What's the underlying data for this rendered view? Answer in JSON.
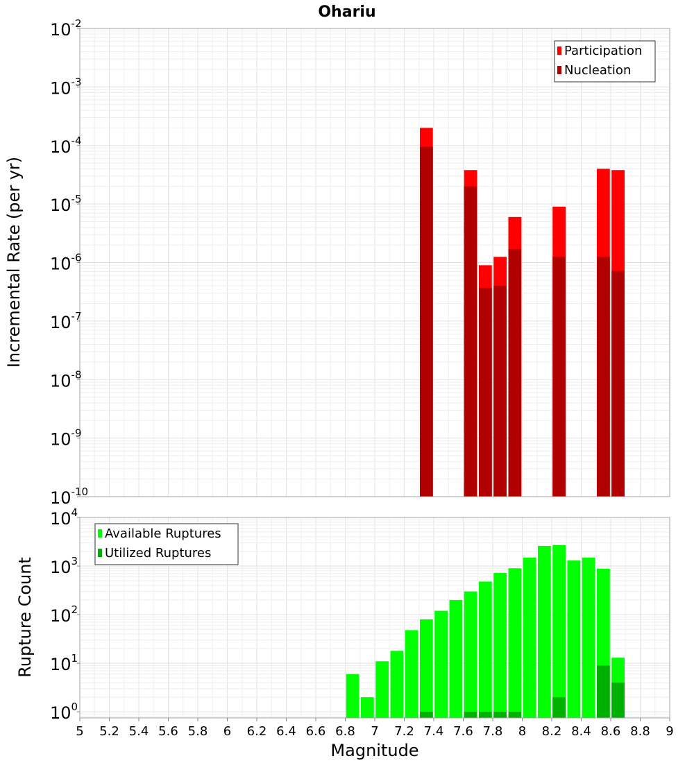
{
  "chart_data": [
    {
      "type": "bar",
      "title": "Ohariu",
      "ylabel": "Incremental Rate (per yr)",
      "y_scale": "log",
      "ylim": [
        1e-10,
        0.01
      ],
      "xlim": [
        5,
        9
      ],
      "grid": true,
      "legend_position": "top-right",
      "x": [
        7.35,
        7.65,
        7.75,
        7.85,
        7.95,
        8.25,
        8.55,
        8.65
      ],
      "series": [
        {
          "name": "Participation",
          "color": "#ff0000",
          "values": [
            0.0002,
            3.8e-05,
            9e-07,
            1.25e-06,
            6e-06,
            9e-06,
            4e-05,
            3.8e-05
          ]
        },
        {
          "name": "Nucleation",
          "color": "#b00000",
          "values": [
            9.5e-05,
            2e-05,
            3.7e-07,
            4e-07,
            1.7e-06,
            1.25e-06,
            1.25e-06,
            7.2e-07
          ]
        }
      ]
    },
    {
      "type": "bar",
      "xlabel": "Magnitude",
      "ylabel": "Rupture Count",
      "y_scale": "log",
      "ylim": [
        0.75,
        10000
      ],
      "xlim": [
        5,
        9
      ],
      "grid": true,
      "legend_position": "top-left",
      "x": [
        6.85,
        6.95,
        7.05,
        7.15,
        7.25,
        7.35,
        7.45,
        7.55,
        7.65,
        7.75,
        7.85,
        7.95,
        8.05,
        8.15,
        8.25,
        8.35,
        8.45,
        8.55,
        8.65
      ],
      "series": [
        {
          "name": "Available Ruptures",
          "color": "#00ff00",
          "values": [
            6,
            2,
            11,
            18,
            48,
            80,
            120,
            200,
            300,
            480,
            720,
            900,
            1500,
            2600,
            2700,
            1300,
            1500,
            880,
            13
          ]
        },
        {
          "name": "Utilized Ruptures",
          "color": "#00b000",
          "values": [
            0,
            0,
            0,
            0,
            0,
            1,
            0,
            0,
            1,
            1,
            1,
            1,
            0,
            0,
            2,
            0,
            0,
            9,
            4
          ]
        }
      ]
    }
  ],
  "x_tick_labels": [
    "5",
    "5.2",
    "5.4",
    "5.6",
    "5.8",
    "6",
    "6.2",
    "6.4",
    "6.6",
    "6.8",
    "7",
    "7.2",
    "7.4",
    "7.6",
    "7.8",
    "8",
    "8.2",
    "8.4",
    "8.6",
    "8.8",
    "9"
  ],
  "top_y_ticks": [
    {
      "base": "10",
      "exp": "-2"
    },
    {
      "base": "10",
      "exp": "-3"
    },
    {
      "base": "10",
      "exp": "-4"
    },
    {
      "base": "10",
      "exp": "-5"
    },
    {
      "base": "10",
      "exp": "-6"
    },
    {
      "base": "10",
      "exp": "-7"
    },
    {
      "base": "10",
      "exp": "-8"
    },
    {
      "base": "10",
      "exp": "-9"
    },
    {
      "base": "10",
      "exp": "-10"
    }
  ],
  "bottom_y_ticks": [
    {
      "base": "10",
      "exp": "4"
    },
    {
      "base": "10",
      "exp": "3"
    },
    {
      "base": "10",
      "exp": "2"
    },
    {
      "base": "10",
      "exp": "1"
    },
    {
      "base": "10",
      "exp": "0"
    }
  ]
}
